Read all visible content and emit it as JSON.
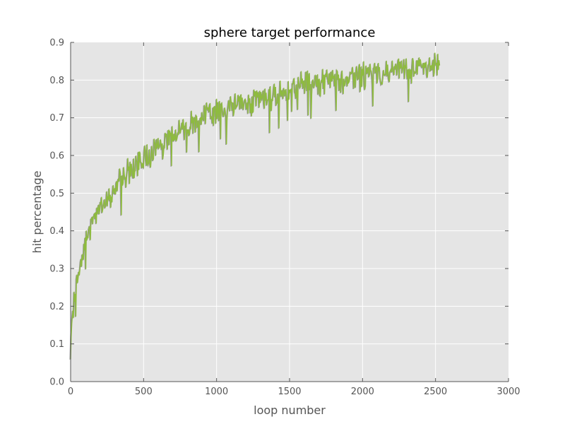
{
  "chart_data": {
    "type": "line",
    "title": "sphere target performance",
    "xlabel": "loop number",
    "ylabel": "hit percentage",
    "xlim": [
      0,
      3000
    ],
    "ylim": [
      0.0,
      0.9
    ],
    "xticks": [
      0,
      500,
      1000,
      1500,
      2000,
      2500,
      3000
    ],
    "xtick_labels": [
      "0",
      "500",
      "1000",
      "1500",
      "2000",
      "2500",
      "3000"
    ],
    "yticks": [
      0.0,
      0.1,
      0.2,
      0.3,
      0.4,
      0.5,
      0.6,
      0.7,
      0.8,
      0.9
    ],
    "ytick_labels": [
      "0.0",
      "0.1",
      "0.2",
      "0.3",
      "0.4",
      "0.5",
      "0.6",
      "0.7",
      "0.8",
      "0.9"
    ],
    "grid": true,
    "background_color": "#e5e5e5",
    "grid_color": "#ffffff",
    "series": [
      {
        "color": "#8ebb3f",
        "shadow_color": "#555555",
        "x": [
          0,
          10,
          25,
          50,
          75,
          100,
          150,
          200,
          250,
          300,
          350,
          400,
          450,
          500,
          550,
          600,
          650,
          700,
          750,
          800,
          850,
          900,
          950,
          1000,
          1050,
          1100,
          1150,
          1200,
          1250,
          1300,
          1350,
          1400,
          1450,
          1500,
          1550,
          1600,
          1650,
          1700,
          1750,
          1800,
          1850,
          1900,
          1950,
          2000,
          2050,
          2100,
          2150,
          2200,
          2250,
          2300,
          2350,
          2400,
          2450,
          2500,
          2530
        ],
        "values": [
          0.06,
          0.15,
          0.22,
          0.28,
          0.33,
          0.37,
          0.42,
          0.46,
          0.49,
          0.51,
          0.54,
          0.56,
          0.57,
          0.59,
          0.61,
          0.63,
          0.64,
          0.66,
          0.67,
          0.68,
          0.69,
          0.7,
          0.71,
          0.715,
          0.72,
          0.73,
          0.735,
          0.74,
          0.745,
          0.75,
          0.755,
          0.76,
          0.77,
          0.775,
          0.78,
          0.785,
          0.79,
          0.79,
          0.795,
          0.8,
          0.8,
          0.805,
          0.81,
          0.81,
          0.815,
          0.82,
          0.82,
          0.825,
          0.83,
          0.83,
          0.83,
          0.835,
          0.84,
          0.84,
          0.85
        ]
      }
    ]
  }
}
